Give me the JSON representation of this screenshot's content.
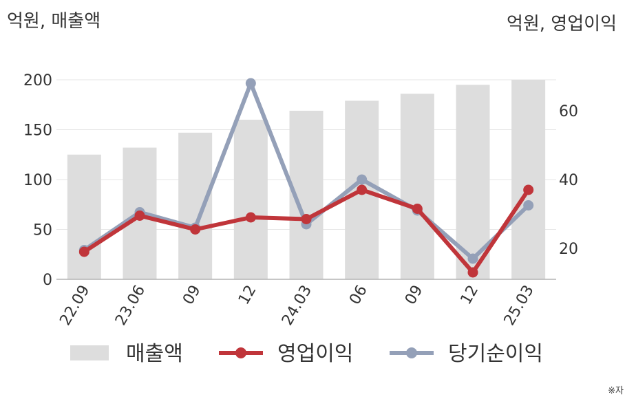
{
  "chart_data": {
    "type": "bar+line",
    "left_axis_unit": "억원, 매출액",
    "right_axis_unit": "억원, 영업이익",
    "categories": [
      "22.09",
      "23.06",
      "09",
      "12",
      "24.03",
      "06",
      "09",
      "12",
      "25.03"
    ],
    "left_axis": {
      "ylim": [
        0,
        200
      ],
      "ticks": [
        0,
        50,
        100,
        150,
        200
      ]
    },
    "right_axis": {
      "ylim": [
        11,
        69
      ],
      "ticks": [
        20,
        40,
        60
      ]
    },
    "grid": true,
    "series": [
      {
        "name": "매출액",
        "type": "bar",
        "axis": "left",
        "color": "#dddddd",
        "values": [
          125,
          132,
          147,
          160,
          169,
          179,
          186,
          195,
          201
        ]
      },
      {
        "name": "영업이익",
        "type": "line",
        "axis": "right",
        "color": "#c0353a",
        "values": [
          19,
          29.5,
          25.5,
          29,
          28.5,
          37,
          31.5,
          13,
          37
        ]
      },
      {
        "name": "당기순이익",
        "type": "line",
        "axis": "right",
        "color": "#94a0b8",
        "values": [
          19.5,
          30.5,
          26,
          68,
          27,
          40,
          31,
          17,
          32.5
        ]
      }
    ],
    "legend": {
      "placement": "bottom",
      "items": [
        "매출액",
        "영업이익",
        "당기순이익"
      ]
    }
  },
  "footnote": "※자"
}
